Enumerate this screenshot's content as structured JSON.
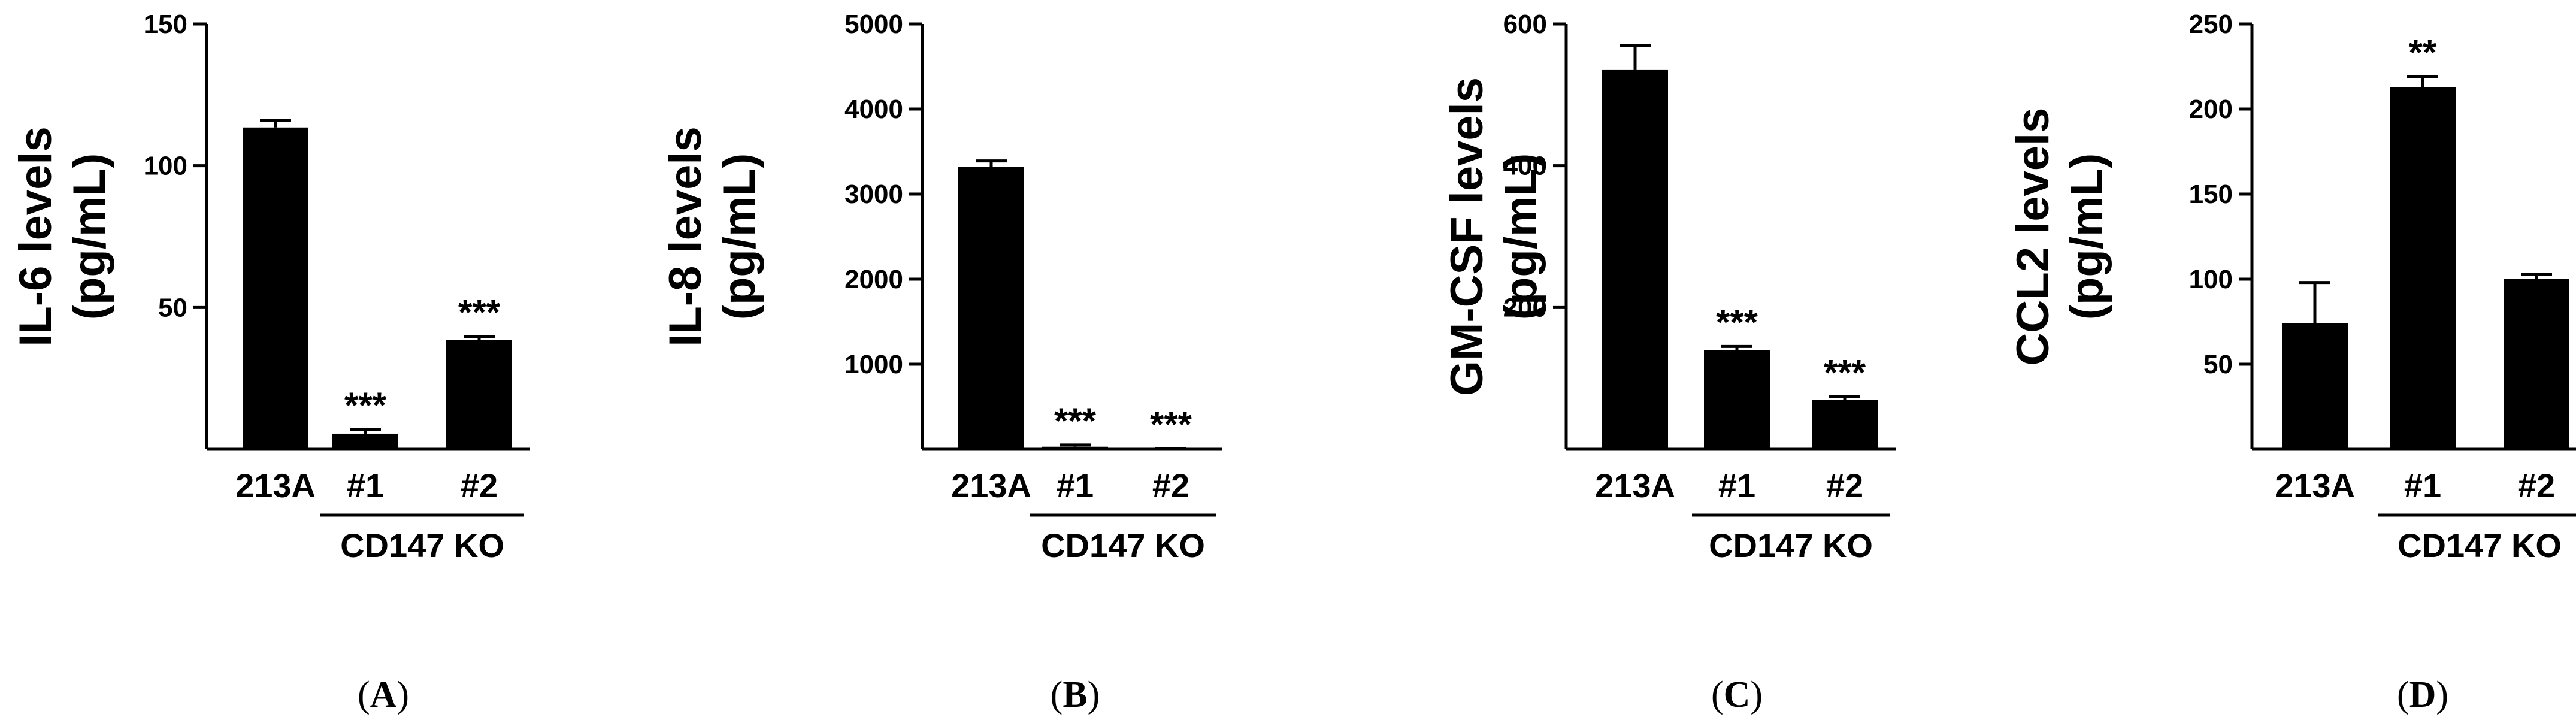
{
  "chart_data": [
    {
      "type": "bar",
      "panel": "A",
      "ylabel": [
        "IL-6 levels",
        "(pg/mL)"
      ],
      "ylim": [
        0,
        150
      ],
      "yticks": [
        50,
        100,
        150
      ],
      "categories": [
        "213A",
        "#1",
        "#2"
      ],
      "group_label": "CD147 KO",
      "values": [
        113.5,
        5.5,
        38.5
      ],
      "errors": [
        2.5,
        1.5,
        1.2
      ],
      "significance": [
        "",
        "***",
        "***"
      ],
      "grid": false,
      "legend": "none"
    },
    {
      "type": "bar",
      "panel": "B",
      "ylabel": [
        "IL-8 levels",
        "(pg/mL)"
      ],
      "ylim": [
        0,
        5000
      ],
      "yticks": [
        1000,
        2000,
        3000,
        4000,
        5000
      ],
      "categories": [
        "213A",
        "#1",
        "#2"
      ],
      "group_label": "CD147 KO",
      "values": [
        3320,
        30,
        5
      ],
      "errors": [
        70,
        20,
        3
      ],
      "significance": [
        "",
        "***",
        "***"
      ],
      "grid": false,
      "legend": "none"
    },
    {
      "type": "bar",
      "panel": "C",
      "ylabel": [
        "GM-CSF levels",
        "(pg/mL)"
      ],
      "ylim": [
        0,
        600
      ],
      "yticks": [
        200,
        400,
        600
      ],
      "categories": [
        "213A",
        "#1",
        "#2"
      ],
      "group_label": "CD147 KO",
      "values": [
        535,
        140,
        70
      ],
      "errors": [
        35,
        5,
        4
      ],
      "significance": [
        "",
        "***",
        "***"
      ],
      "grid": false,
      "legend": "none"
    },
    {
      "type": "bar",
      "panel": "D",
      "ylabel": [
        "CCL2 levels",
        "(pg/mL)"
      ],
      "ylim": [
        0,
        250
      ],
      "yticks": [
        50,
        100,
        150,
        200,
        250
      ],
      "categories": [
        "213A",
        "#1",
        "#2"
      ],
      "group_label": "CD147 KO",
      "values": [
        74,
        213,
        100
      ],
      "errors": [
        24,
        6,
        3
      ],
      "significance": [
        "",
        "**",
        ""
      ],
      "grid": false,
      "legend": "none"
    }
  ],
  "panel_labels": [
    "A",
    "B",
    "C",
    "D"
  ],
  "colors": {
    "bar": "#000000",
    "axis": "#000000",
    "background": "#ffffff"
  }
}
